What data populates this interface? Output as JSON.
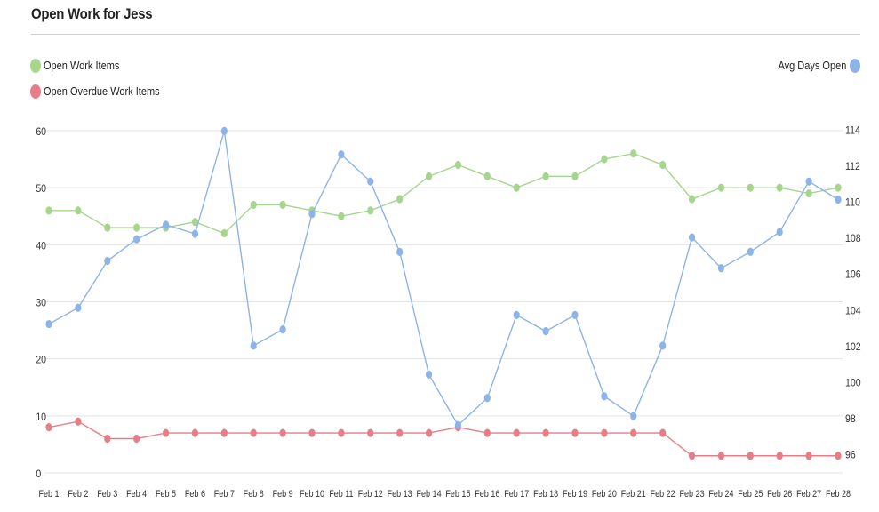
{
  "header": {
    "title": "Open Work for Jess"
  },
  "legend": {
    "open_items": "Open Work Items",
    "overdue_items": "Open Overdue Work Items",
    "avg_days": "Avg Days Open"
  },
  "colors": {
    "open_items": "#a5d68c",
    "overdue_items": "#e57e86",
    "avg_days": "#8db4e8",
    "grid": "#e3e3e3"
  },
  "chart_data": {
    "type": "line",
    "title": "Open Work for Jess",
    "categories": [
      "Feb 1",
      "Feb 2",
      "Feb 3",
      "Feb 4",
      "Feb 5",
      "Feb 6",
      "Feb 7",
      "Feb 8",
      "Feb 9",
      "Feb 10",
      "Feb 11",
      "Feb 12",
      "Feb 13",
      "Feb 14",
      "Feb 15",
      "Feb 16",
      "Feb 17",
      "Feb 18",
      "Feb 19",
      "Feb 20",
      "Feb 21",
      "Feb 22",
      "Feb 23",
      "Feb 24",
      "Feb 25",
      "Feb 26",
      "Feb 27",
      "Feb 28"
    ],
    "left_axis": {
      "ylim": [
        0,
        60
      ],
      "ticks": [
        "0",
        "10",
        "20",
        "30",
        "40",
        "50",
        "60"
      ]
    },
    "right_axis": {
      "ylim": [
        95,
        115
      ],
      "ticks": [
        "96",
        "98",
        "100",
        "102",
        "104",
        "106",
        "108",
        "110",
        "112",
        "114"
      ]
    },
    "grid": true,
    "series": [
      {
        "name": "Open Work Items",
        "axis": "left",
        "values": [
          46,
          46,
          43,
          43,
          43,
          44,
          42,
          47,
          47,
          46,
          45,
          46,
          48,
          52,
          54,
          52,
          50,
          52,
          52,
          55,
          56,
          54,
          48,
          50,
          50,
          50,
          49,
          50
        ]
      },
      {
        "name": "Open Overdue Work Items",
        "axis": "left",
        "values": [
          8,
          9,
          6,
          6,
          7,
          7,
          7,
          7,
          7,
          7,
          7,
          7,
          7,
          7,
          8,
          7,
          7,
          7,
          7,
          7,
          7,
          7,
          3,
          3,
          3,
          3,
          3,
          3
        ]
      },
      {
        "name": "Avg Days Open",
        "axis": "right",
        "values": [
          103.2,
          104.1,
          106.7,
          107.9,
          108.7,
          108.2,
          113.9,
          102.0,
          102.9,
          109.3,
          112.6,
          111.1,
          107.2,
          100.4,
          97.6,
          99.1,
          103.7,
          102.8,
          103.7,
          99.2,
          98.1,
          102.0,
          108.0,
          106.3,
          107.2,
          108.3,
          111.1,
          110.1
        ]
      }
    ]
  }
}
